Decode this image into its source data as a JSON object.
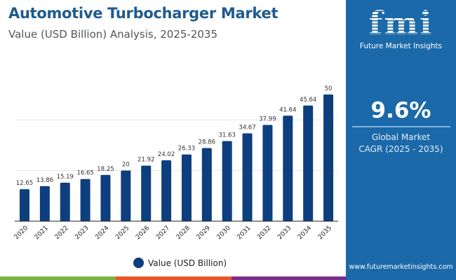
{
  "header": {
    "title": "Automotive Turbocharger Market",
    "subtitle": "Value (USD Billion) Analysis, 2025-2035"
  },
  "chart_data": {
    "type": "bar",
    "categories": [
      "2020",
      "2021",
      "2022",
      "2023",
      "2024",
      "2025",
      "2026",
      "2027",
      "2028",
      "2029",
      "2030",
      "2031",
      "2032",
      "2033",
      "2034",
      "2035"
    ],
    "series": [
      {
        "name": "Value (USD Billion)",
        "values": [
          12.65,
          13.86,
          15.19,
          16.65,
          18.25,
          20,
          21.92,
          24.02,
          26.33,
          28.86,
          31.63,
          34.67,
          37.99,
          41.64,
          45.64,
          50
        ]
      }
    ],
    "data_labels": [
      "12.65",
      "13.86",
      "15.19",
      "16.65",
      "18.25",
      "20",
      "21.92",
      "24.02",
      "26.33",
      "28.86",
      "31.63",
      "34.67",
      "37.99",
      "41.64",
      "45.64",
      "50"
    ],
    "ylim": [
      0,
      60
    ],
    "gridlines": [
      20,
      40
    ],
    "grid": true,
    "legend": "bottom",
    "bar_color": "#0d3f7f"
  },
  "panel": {
    "logo_text": "fmi",
    "brand": "Future Market Insights",
    "cagr_value": "9.6%",
    "cagr_label_1": "Global Market",
    "cagr_label_2": "CAGR (2025 - 2035)",
    "website": "www.futuremarketinsights.com",
    "color": "#1b69a8"
  },
  "stripes": [
    "#7cb342",
    "#e8572a",
    "#7b2d8e"
  ]
}
